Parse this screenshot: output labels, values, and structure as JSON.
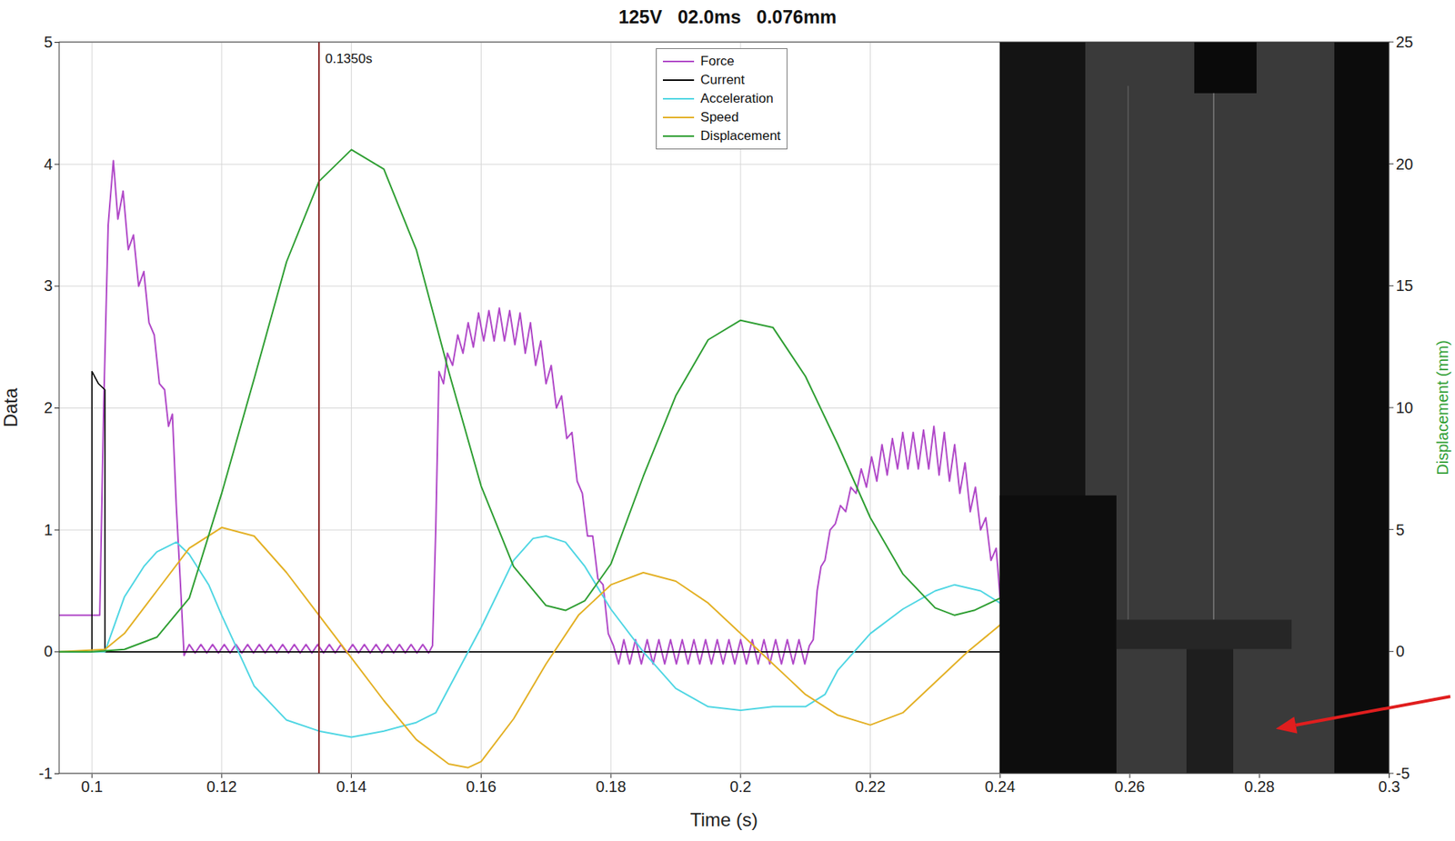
{
  "chart_data": {
    "type": "line",
    "title": "125V   02.0ms   0.076mm",
    "xlabel": "Time (s)",
    "ylabel": "Data",
    "y2label": "Displacement (mm)",
    "xlim": [
      0.095,
      0.3
    ],
    "xticks": [
      0.1,
      0.12,
      0.14,
      0.16,
      0.18,
      0.2,
      0.22,
      0.24,
      0.26,
      0.28,
      0.3
    ],
    "ylim": [
      -1,
      5
    ],
    "yticks": [
      -1,
      0,
      1,
      2,
      3,
      4,
      5
    ],
    "y2lim": [
      -5,
      25
    ],
    "y2ticks": [
      -5,
      0,
      5,
      10,
      15,
      20,
      25
    ],
    "grid": true,
    "legend": "top",
    "annotations": [
      {
        "x": 0.135,
        "label": "0.1350s"
      }
    ],
    "series": [
      {
        "name": "Force",
        "color": "#b048c8",
        "x": [
          0.095,
          0.1,
          0.1012,
          0.1018,
          0.1025,
          0.1033,
          0.104,
          0.1048,
          0.1056,
          0.1064,
          0.1072,
          0.108,
          0.1088,
          0.1096,
          0.1104,
          0.1112,
          0.1118,
          0.1124,
          0.113,
          0.1136,
          0.1142,
          0.115,
          0.1159,
          0.1168,
          0.1177,
          0.1186,
          0.1195,
          0.1204,
          0.1213,
          0.1222,
          0.1231,
          0.124,
          0.1249,
          0.1258,
          0.1267,
          0.1276,
          0.1285,
          0.1294,
          0.1303,
          0.1312,
          0.1321,
          0.133,
          0.1339,
          0.1348,
          0.1357,
          0.1366,
          0.1375,
          0.1384,
          0.1393,
          0.1402,
          0.1411,
          0.142,
          0.1429,
          0.1438,
          0.1447,
          0.1456,
          0.1465,
          0.1474,
          0.1483,
          0.1492,
          0.1501,
          0.151,
          0.1519,
          0.1525,
          0.153,
          0.1535,
          0.1542,
          0.1548,
          0.1556,
          0.1564,
          0.1572,
          0.158,
          0.1588,
          0.1596,
          0.1604,
          0.1612,
          0.162,
          0.1628,
          0.1636,
          0.1644,
          0.1652,
          0.166,
          0.1668,
          0.1676,
          0.1684,
          0.1692,
          0.17,
          0.1708,
          0.1716,
          0.1724,
          0.1732,
          0.174,
          0.1748,
          0.1756,
          0.1764,
          0.1772,
          0.178,
          0.1788,
          0.1796,
          0.1804,
          0.1812,
          0.182,
          0.1829,
          0.1838,
          0.1847,
          0.1856,
          0.1865,
          0.1874,
          0.1883,
          0.1892,
          0.1901,
          0.191,
          0.1919,
          0.1928,
          0.1937,
          0.1946,
          0.1955,
          0.1964,
          0.1973,
          0.1982,
          0.1991,
          0.2,
          0.2009,
          0.2018,
          0.2027,
          0.2036,
          0.2045,
          0.2054,
          0.2063,
          0.2072,
          0.2081,
          0.209,
          0.2099,
          0.2106,
          0.2112,
          0.2118,
          0.2124,
          0.213,
          0.2138,
          0.2146,
          0.2154,
          0.2162,
          0.217,
          0.2178,
          0.2186,
          0.2194,
          0.2202,
          0.221,
          0.2218,
          0.2226,
          0.2234,
          0.2242,
          0.225,
          0.2258,
          0.2266,
          0.2274,
          0.2282,
          0.229,
          0.2298,
          0.2306,
          0.2314,
          0.2322,
          0.233,
          0.2338,
          0.2346,
          0.2354,
          0.2362,
          0.237,
          0.2378,
          0.2386,
          0.2394,
          0.24
        ],
        "values": [
          0.3,
          0.3,
          0.3,
          2.0,
          3.5,
          4.03,
          3.55,
          3.78,
          3.3,
          3.42,
          3.0,
          3.12,
          2.7,
          2.6,
          2.2,
          2.15,
          1.85,
          1.95,
          1.2,
          0.6,
          -0.03,
          0.06,
          -0.01,
          0.06,
          -0.01,
          0.06,
          -0.01,
          0.06,
          -0.01,
          0.06,
          -0.01,
          0.06,
          -0.01,
          0.06,
          -0.01,
          0.06,
          -0.01,
          0.06,
          -0.01,
          0.06,
          -0.01,
          0.06,
          -0.01,
          0.06,
          -0.01,
          0.06,
          -0.01,
          0.06,
          -0.01,
          0.06,
          -0.01,
          0.06,
          -0.01,
          0.06,
          -0.01,
          0.06,
          -0.01,
          0.06,
          -0.01,
          0.06,
          -0.01,
          0.06,
          -0.01,
          0.05,
          1.0,
          2.3,
          2.2,
          2.45,
          2.35,
          2.6,
          2.45,
          2.7,
          2.5,
          2.78,
          2.55,
          2.8,
          2.55,
          2.82,
          2.55,
          2.8,
          2.52,
          2.78,
          2.45,
          2.7,
          2.35,
          2.55,
          2.2,
          2.35,
          2.0,
          2.1,
          1.75,
          1.8,
          1.4,
          1.3,
          0.95,
          0.95,
          0.6,
          0.55,
          0.15,
          0.05,
          -0.1,
          0.1,
          -0.1,
          0.1,
          -0.1,
          0.1,
          -0.1,
          0.1,
          -0.1,
          0.1,
          -0.1,
          0.1,
          -0.1,
          0.1,
          -0.1,
          0.1,
          -0.1,
          0.1,
          -0.1,
          0.1,
          -0.1,
          0.1,
          -0.1,
          0.1,
          -0.1,
          0.1,
          -0.1,
          0.1,
          -0.1,
          0.1,
          -0.1,
          0.1,
          -0.1,
          0.05,
          0.1,
          0.5,
          0.7,
          0.75,
          1.0,
          1.05,
          1.2,
          1.15,
          1.35,
          1.3,
          1.5,
          1.35,
          1.6,
          1.4,
          1.7,
          1.45,
          1.75,
          1.5,
          1.8,
          1.5,
          1.8,
          1.5,
          1.82,
          1.5,
          1.85,
          1.45,
          1.8,
          1.4,
          1.7,
          1.3,
          1.55,
          1.15,
          1.35,
          1.0,
          1.1,
          0.75,
          0.85,
          0.45
        ]
      },
      {
        "name": "Current",
        "color": "#000000",
        "x": [
          0.095,
          0.1,
          0.1,
          0.101,
          0.102,
          0.102,
          0.24
        ],
        "values": [
          0,
          0,
          2.3,
          2.2,
          2.15,
          0,
          0
        ]
      },
      {
        "name": "Acceleration",
        "color": "#4fd6e3",
        "x": [
          0.095,
          0.102,
          0.105,
          0.108,
          0.11,
          0.113,
          0.115,
          0.118,
          0.12,
          0.125,
          0.13,
          0.135,
          0.14,
          0.145,
          0.15,
          0.153,
          0.155,
          0.16,
          0.165,
          0.168,
          0.17,
          0.173,
          0.176,
          0.18,
          0.185,
          0.19,
          0.195,
          0.2,
          0.205,
          0.21,
          0.213,
          0.215,
          0.22,
          0.225,
          0.23,
          0.233,
          0.237,
          0.24
        ],
        "values": [
          0,
          0,
          0.45,
          0.7,
          0.82,
          0.9,
          0.8,
          0.55,
          0.3,
          -0.28,
          -0.56,
          -0.65,
          -0.7,
          -0.65,
          -0.58,
          -0.5,
          -0.3,
          0.2,
          0.75,
          0.93,
          0.95,
          0.9,
          0.7,
          0.35,
          0.0,
          -0.3,
          -0.45,
          -0.48,
          -0.45,
          -0.45,
          -0.35,
          -0.15,
          0.15,
          0.35,
          0.5,
          0.55,
          0.5,
          0.4
        ]
      },
      {
        "name": "Speed",
        "color": "#e3b024",
        "x": [
          0.095,
          0.102,
          0.105,
          0.11,
          0.115,
          0.12,
          0.125,
          0.13,
          0.135,
          0.14,
          0.145,
          0.15,
          0.155,
          0.158,
          0.16,
          0.165,
          0.17,
          0.175,
          0.18,
          0.185,
          0.19,
          0.195,
          0.2,
          0.205,
          0.21,
          0.215,
          0.22,
          0.225,
          0.23,
          0.235,
          0.24
        ],
        "values": [
          0,
          0.02,
          0.15,
          0.5,
          0.85,
          1.02,
          0.95,
          0.65,
          0.3,
          -0.05,
          -0.4,
          -0.72,
          -0.92,
          -0.95,
          -0.9,
          -0.55,
          -0.1,
          0.3,
          0.55,
          0.65,
          0.58,
          0.4,
          0.15,
          -0.1,
          -0.35,
          -0.52,
          -0.6,
          -0.5,
          -0.25,
          0.0,
          0.22
        ]
      },
      {
        "name": "Displacement",
        "color": "#2e9e32",
        "axis": "y2",
        "x": [
          0.095,
          0.1,
          0.105,
          0.11,
          0.115,
          0.12,
          0.125,
          0.13,
          0.135,
          0.14,
          0.145,
          0.15,
          0.155,
          0.16,
          0.165,
          0.17,
          0.173,
          0.176,
          0.18,
          0.185,
          0.19,
          0.195,
          0.2,
          0.205,
          0.21,
          0.215,
          0.22,
          0.225,
          0.23,
          0.233,
          0.236,
          0.24
        ],
        "values": [
          0,
          0,
          0.1,
          0.6,
          2.2,
          6.5,
          11.2,
          16,
          19.3,
          20.6,
          19.8,
          16.5,
          11.5,
          6.8,
          3.5,
          1.9,
          1.7,
          2.1,
          3.6,
          7.2,
          10.5,
          12.8,
          13.6,
          13.3,
          11.3,
          8.5,
          5.5,
          3.2,
          1.8,
          1.5,
          1.7,
          2.2
        ]
      }
    ]
  }
}
